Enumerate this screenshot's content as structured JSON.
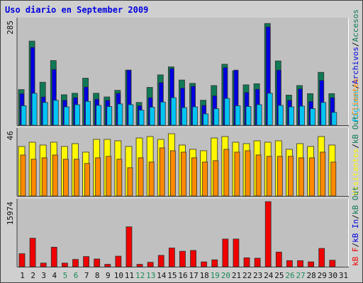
{
  "title": "Uso diario en September 2009",
  "colors": {
    "visits": "#0f7a55",
    "pages": "#0000e0",
    "hits": "#00c4f4",
    "visitors": "#fff800",
    "kbf": "#ff8a00",
    "kb": "#f00000",
    "panel": "#c0c0c0",
    "background": "#cfcfcf",
    "weekend_label": "#1a8a55",
    "weekday_label": "#101010"
  },
  "chart_data": [
    {
      "type": "bar",
      "panel": "top",
      "y_max_label": "285",
      "ylim": [
        0,
        285
      ],
      "categories": [
        "1",
        "2",
        "3",
        "4",
        "5",
        "6",
        "7",
        "8",
        "9",
        "10",
        "11",
        "12",
        "13",
        "14",
        "15",
        "16",
        "17",
        "18",
        "19",
        "20",
        "21",
        "22",
        "23",
        "24",
        "25",
        "26",
        "27",
        "28",
        "29",
        "30",
        "31"
      ],
      "series": [
        {
          "name": "Visitas",
          "values": [
            97,
            229,
            117,
            176,
            83,
            87,
            128,
            87,
            77,
            95,
            150,
            62,
            103,
            137,
            159,
            123,
            114,
            68,
            108,
            166,
            148,
            110,
            113,
            277,
            175,
            82,
            108,
            86,
            144,
            86,
            0
          ]
        },
        {
          "name": "Archivos",
          "values": [
            86,
            212,
            77,
            152,
            68,
            75,
            104,
            71,
            68,
            87,
            150,
            53,
            75,
            116,
            154,
            101,
            106,
            54,
            80,
            157,
            150,
            89,
            98,
            268,
            150,
            68,
            99,
            65,
            122,
            75,
            0
          ]
        },
        {
          "name": "Páginas",
          "values": [
            53,
            87,
            62,
            68,
            50,
            56,
            65,
            54,
            51,
            58,
            56,
            41,
            49,
            63,
            75,
            48,
            50,
            31,
            45,
            73,
            53,
            51,
            56,
            87,
            54,
            50,
            52,
            45,
            62,
            35,
            0
          ]
        }
      ],
      "right_label_parts": [
        "Páginas",
        "/",
        "Archivos",
        "/",
        "Accesos"
      ]
    },
    {
      "type": "bar",
      "panel": "middle",
      "y_max_label": "46",
      "ylim": [
        0,
        46
      ],
      "categories": [
        "1",
        "2",
        "3",
        "4",
        "5",
        "6",
        "7",
        "8",
        "9",
        "10",
        "11",
        "12",
        "13",
        "14",
        "15",
        "16",
        "17",
        "18",
        "19",
        "20",
        "21",
        "22",
        "23",
        "24",
        "25",
        "26",
        "27",
        "28",
        "29",
        "30",
        "31"
      ],
      "series": [
        {
          "name": "Visitantes",
          "values": [
            35,
            38,
            36,
            38,
            35,
            37,
            31,
            40,
            40,
            39,
            35,
            41,
            42,
            40,
            44,
            36,
            33,
            32,
            41,
            42,
            38,
            37,
            39,
            38,
            39,
            33,
            37,
            35,
            42,
            36,
            0
          ]
        },
        {
          "name": "kB F",
          "values": [
            29,
            26,
            27,
            29,
            26,
            26,
            23,
            27,
            28,
            26,
            20,
            27,
            24,
            34,
            32,
            31,
            27,
            24,
            25,
            33,
            31,
            32,
            29,
            28,
            28,
            28,
            27,
            27,
            31,
            24,
            0
          ]
        }
      ],
      "right_label_parts": [
        "Visitantes",
        "/",
        "kB Out",
        "Clientes"
      ]
    },
    {
      "type": "bar",
      "panel": "bottom",
      "y_max_label": "15974",
      "ylim": [
        0,
        15974
      ],
      "categories": [
        "1",
        "2",
        "3",
        "4",
        "5",
        "6",
        "7",
        "8",
        "9",
        "10",
        "11",
        "12",
        "13",
        "14",
        "15",
        "16",
        "17",
        "18",
        "19",
        "20",
        "21",
        "22",
        "23",
        "24",
        "25",
        "26",
        "27",
        "28",
        "29",
        "30",
        "31"
      ],
      "series": [
        {
          "name": "kB",
          "values": [
            3200,
            7000,
            900,
            4800,
            900,
            1800,
            2500,
            1900,
            600,
            2600,
            9800,
            600,
            1100,
            2800,
            4600,
            3800,
            4000,
            1200,
            1700,
            6800,
            6800,
            2200,
            2100,
            15974,
            3600,
            1500,
            1500,
            1200,
            4500,
            1600,
            0
          ]
        }
      ],
      "right_label_parts": [
        "kB F",
        "/",
        "kB In",
        "/",
        "kB Out"
      ]
    }
  ],
  "x_labels": [
    "1",
    "2",
    "3",
    "4",
    "5",
    "6",
    "7",
    "8",
    "9",
    "10",
    "11",
    "12",
    "13",
    "14",
    "15",
    "16",
    "17",
    "18",
    "19",
    "20",
    "21",
    "22",
    "23",
    "24",
    "25",
    "26",
    "27",
    "28",
    "29",
    "30",
    "31"
  ],
  "weekend_days": [
    "5",
    "6",
    "12",
    "13",
    "19",
    "20",
    "26",
    "27"
  ]
}
